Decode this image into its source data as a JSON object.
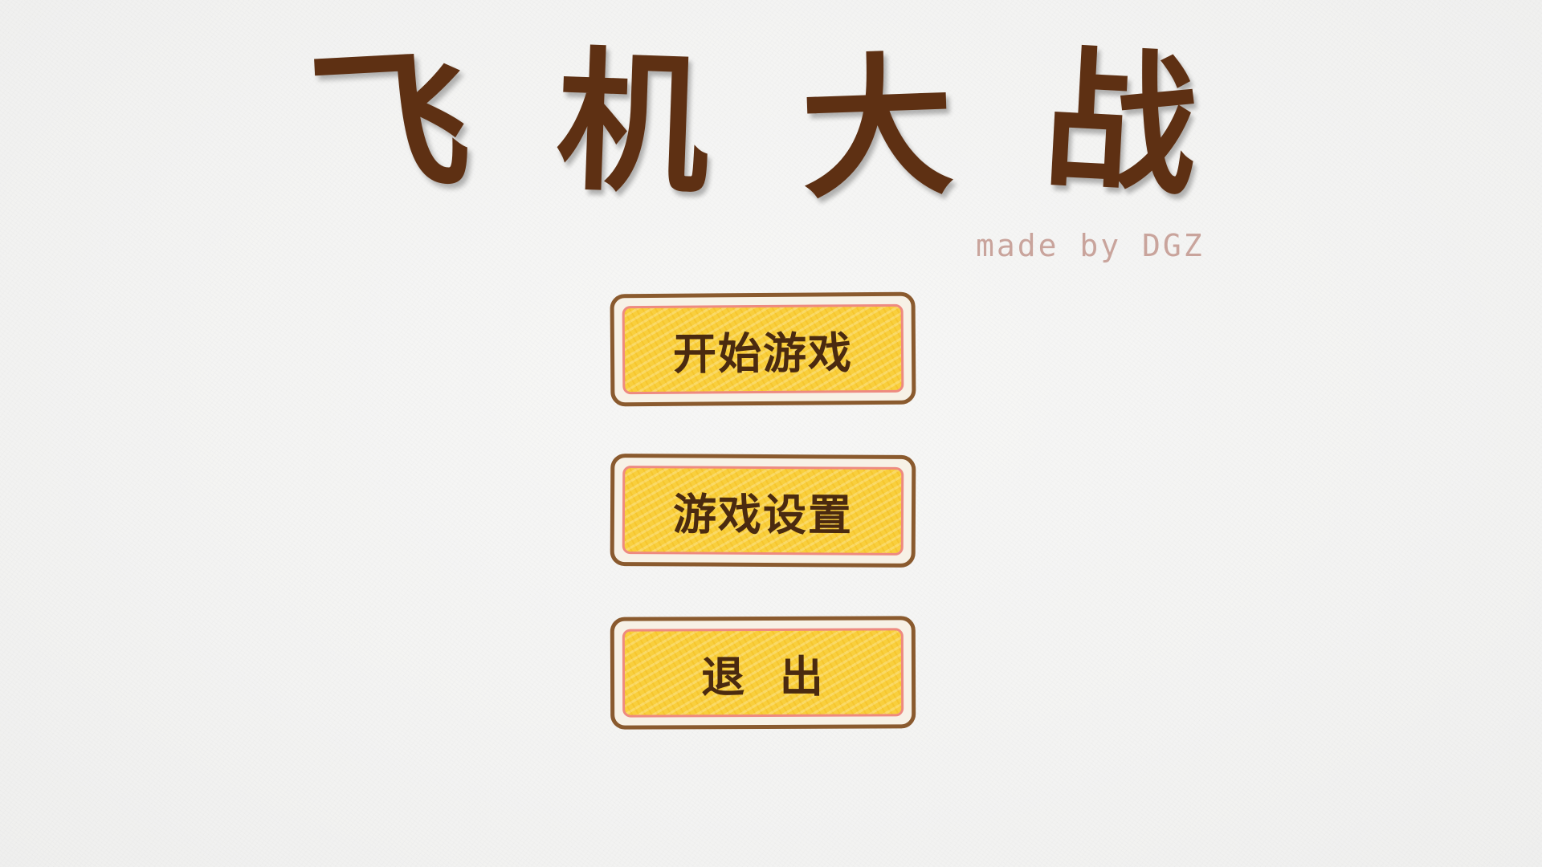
{
  "title": {
    "chars": [
      "飞",
      "机",
      "大",
      "战"
    ]
  },
  "credit": "made by DGZ",
  "menu": {
    "start_label": "开始游戏",
    "settings_label": "游戏设置",
    "exit_label": "退  出"
  },
  "colors": {
    "title": "#5e3013",
    "button_fill": "#f9cf3c",
    "button_border": "#8a5a2e",
    "button_inner_border": "#ee8a80",
    "credit": "#c9a49c"
  }
}
